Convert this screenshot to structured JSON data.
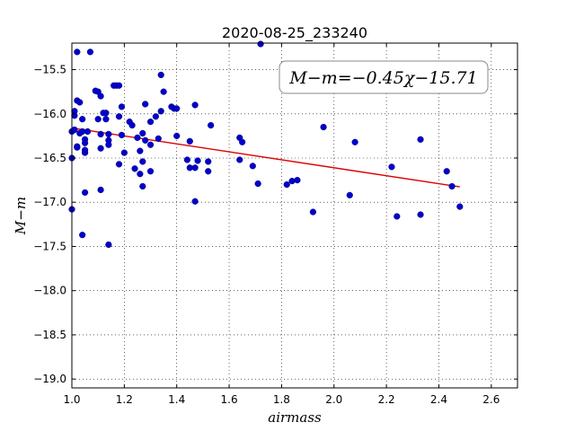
{
  "chart_data": {
    "type": "scatter",
    "title": "2020-08-25_233240",
    "xlabel": "airmass",
    "ylabel": "M−m",
    "xlim": [
      1.0,
      2.7
    ],
    "ylim": [
      -19.1,
      -15.2
    ],
    "y_inverted": true,
    "grid": true,
    "grid_style": "dotted",
    "xticks": [
      1.0,
      1.2,
      1.4,
      1.6,
      1.8,
      2.0,
      2.2,
      2.4,
      2.6
    ],
    "xtick_labels": [
      "1.0",
      "1.2",
      "1.4",
      "1.6",
      "1.8",
      "2.0",
      "2.2",
      "2.4",
      "2.6"
    ],
    "yticks": [
      -15.5,
      -16.0,
      -16.5,
      -17.0,
      -17.5,
      -18.0,
      -18.5,
      -19.0
    ],
    "ytick_labels": [
      "−15.5",
      "−16.0",
      "−16.5",
      "−17.0",
      "−17.5",
      "−18.0",
      "−18.5",
      "−19.0"
    ],
    "annotation": "M−m=−0.45χ−15.71",
    "annotation_position": "top-right",
    "points": [
      [
        1.0,
        -17.08
      ],
      [
        1.0,
        -16.5
      ],
      [
        1.0,
        -16.2
      ],
      [
        1.01,
        -15.97
      ],
      [
        1.01,
        -16.02
      ],
      [
        1.01,
        -16.18
      ],
      [
        1.02,
        -15.3
      ],
      [
        1.02,
        -15.85
      ],
      [
        1.02,
        -16.37
      ],
      [
        1.02,
        -16.38
      ],
      [
        1.03,
        -15.87
      ],
      [
        1.03,
        -16.22
      ],
      [
        1.04,
        -16.06
      ],
      [
        1.04,
        -16.2
      ],
      [
        1.04,
        -17.37
      ],
      [
        1.05,
        -16.29
      ],
      [
        1.05,
        -16.33
      ],
      [
        1.05,
        -16.41
      ],
      [
        1.05,
        -16.44
      ],
      [
        1.05,
        -16.89
      ],
      [
        1.06,
        -16.2
      ],
      [
        1.07,
        -15.3
      ],
      [
        1.09,
        -15.74
      ],
      [
        1.1,
        -16.06
      ],
      [
        1.1,
        -15.75
      ],
      [
        1.11,
        -15.8
      ],
      [
        1.11,
        -16.23
      ],
      [
        1.11,
        -16.39
      ],
      [
        1.11,
        -16.86
      ],
      [
        1.12,
        -15.99
      ],
      [
        1.13,
        -15.99
      ],
      [
        1.13,
        -16.06
      ],
      [
        1.14,
        -16.23
      ],
      [
        1.14,
        -16.3
      ],
      [
        1.14,
        -16.35
      ],
      [
        1.14,
        -17.48
      ],
      [
        1.16,
        -15.68
      ],
      [
        1.17,
        -15.68
      ],
      [
        1.18,
        -15.68
      ],
      [
        1.18,
        -16.03
      ],
      [
        1.18,
        -16.57
      ],
      [
        1.19,
        -16.24
      ],
      [
        1.19,
        -15.92
      ],
      [
        1.2,
        -16.44
      ],
      [
        1.22,
        -16.09
      ],
      [
        1.23,
        -16.13
      ],
      [
        1.24,
        -16.62
      ],
      [
        1.25,
        -16.27
      ],
      [
        1.26,
        -16.42
      ],
      [
        1.26,
        -16.68
      ],
      [
        1.27,
        -16.22
      ],
      [
        1.27,
        -16.54
      ],
      [
        1.27,
        -16.82
      ],
      [
        1.28,
        -16.3
      ],
      [
        1.28,
        -15.89
      ],
      [
        1.3,
        -16.35
      ],
      [
        1.3,
        -16.65
      ],
      [
        1.3,
        -16.09
      ],
      [
        1.32,
        -16.03
      ],
      [
        1.33,
        -16.28
      ],
      [
        1.34,
        -15.56
      ],
      [
        1.34,
        -15.97
      ],
      [
        1.35,
        -15.75
      ],
      [
        1.38,
        -15.92
      ],
      [
        1.39,
        -15.94
      ],
      [
        1.4,
        -16.25
      ],
      [
        1.4,
        -15.94
      ],
      [
        1.44,
        -16.52
      ],
      [
        1.45,
        -16.31
      ],
      [
        1.45,
        -16.61
      ],
      [
        1.47,
        -16.61
      ],
      [
        1.47,
        -16.99
      ],
      [
        1.47,
        -15.9
      ],
      [
        1.48,
        -16.53
      ],
      [
        1.52,
        -16.54
      ],
      [
        1.52,
        -16.65
      ],
      [
        1.53,
        -16.13
      ],
      [
        1.64,
        -16.27
      ],
      [
        1.64,
        -16.52
      ],
      [
        1.65,
        -16.32
      ],
      [
        1.69,
        -16.59
      ],
      [
        1.71,
        -16.79
      ],
      [
        1.72,
        -15.21
      ],
      [
        1.82,
        -16.8
      ],
      [
        1.84,
        -16.76
      ],
      [
        1.86,
        -16.75
      ],
      [
        1.92,
        -17.11
      ],
      [
        1.96,
        -16.15
      ],
      [
        2.06,
        -16.92
      ],
      [
        2.08,
        -16.32
      ],
      [
        2.22,
        -16.6
      ],
      [
        2.24,
        -17.16
      ],
      [
        2.33,
        -16.29
      ],
      [
        2.33,
        -17.14
      ],
      [
        2.43,
        -16.65
      ],
      [
        2.45,
        -16.82
      ],
      [
        2.48,
        -17.05
      ]
    ],
    "fit_line": {
      "slope": -0.45,
      "intercept": -15.71,
      "x_range": [
        1.0,
        2.48
      ],
      "color": "#dd0000"
    },
    "marker_color": "#0000cc"
  }
}
